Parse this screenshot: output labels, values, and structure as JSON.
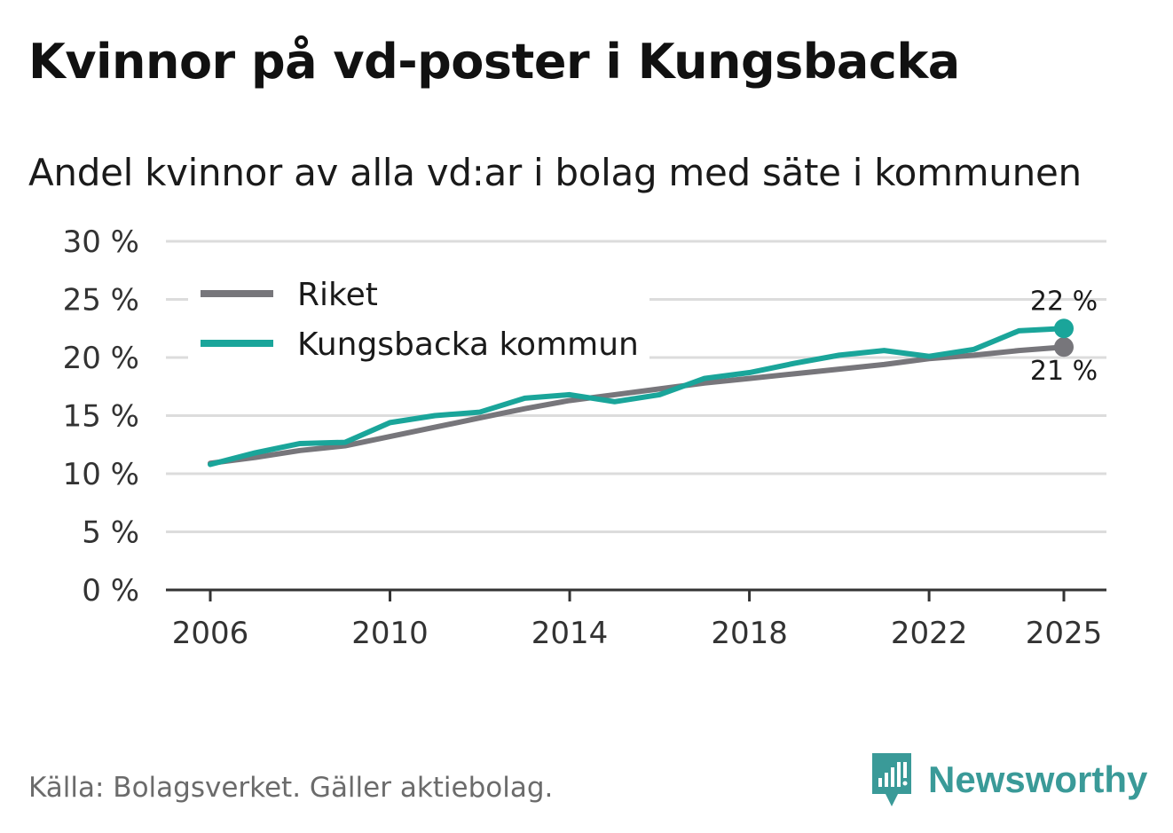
{
  "title": "Kvinnor på vd-poster i Kungsbacka",
  "subtitle": "Andel kvinnor av alla vd:ar i bolag med säte i kommunen",
  "source": "Källa: Bolagsverket. Gäller aktiebolag.",
  "brand": {
    "name": "Newsworthy",
    "icon": "newsworthy-logo-icon",
    "color": "#3a9a98"
  },
  "chart_data": {
    "type": "line",
    "title": "Kvinnor på vd-poster i Kungsbacka",
    "subtitle": "Andel kvinnor av alla vd:ar i bolag med säte i kommunen",
    "xlabel": "",
    "ylabel": "",
    "x": [
      2006,
      2007,
      2008,
      2009,
      2010,
      2011,
      2012,
      2013,
      2014,
      2015,
      2016,
      2017,
      2018,
      2019,
      2020,
      2021,
      2022,
      2023,
      2024,
      2025
    ],
    "xlim": [
      2006,
      2025
    ],
    "ylim": [
      0,
      30
    ],
    "y_ticks": [
      0,
      5,
      10,
      15,
      20,
      25,
      30
    ],
    "y_tick_labels": [
      "0 %",
      "5 %",
      "10 %",
      "15 %",
      "20 %",
      "25 %",
      "30 %"
    ],
    "x_ticks": [
      2006,
      2010,
      2014,
      2018,
      2022,
      2025
    ],
    "x_tick_labels": [
      "2006",
      "2010",
      "2014",
      "2018",
      "2022",
      "2025"
    ],
    "grid": true,
    "legend_position": "top-left",
    "series": [
      {
        "name": "Riket",
        "color": "#77767b",
        "values": [
          10.9,
          11.4,
          12.0,
          12.4,
          13.2,
          14.0,
          14.8,
          15.6,
          16.3,
          16.8,
          17.3,
          17.8,
          18.2,
          18.6,
          19.0,
          19.4,
          19.9,
          20.2,
          20.6,
          20.9
        ],
        "end_label": "21 %"
      },
      {
        "name": "Kungsbacka kommun",
        "color": "#1aa59a",
        "values": [
          10.8,
          11.8,
          12.6,
          12.7,
          14.4,
          15.0,
          15.3,
          16.5,
          16.8,
          16.2,
          16.8,
          18.2,
          18.7,
          19.5,
          20.2,
          20.6,
          20.1,
          20.7,
          22.3,
          22.5
        ],
        "end_label": "22 %"
      }
    ]
  }
}
